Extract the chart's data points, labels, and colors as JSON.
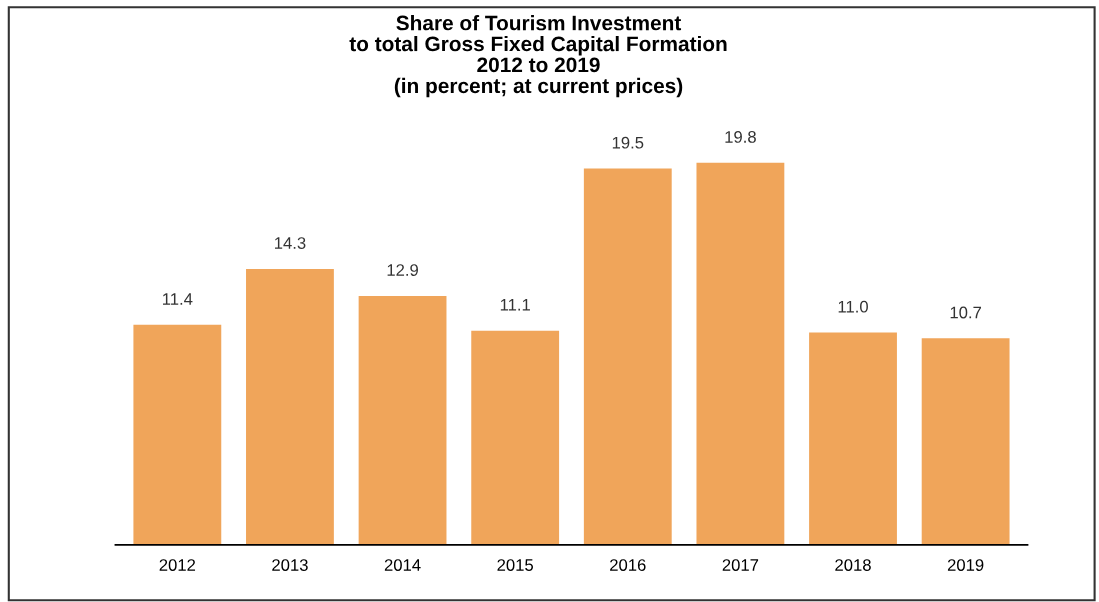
{
  "chart_data": {
    "type": "bar",
    "title": "Share of Tourism Investment\nto total Gross Fixed Capital Formation\n2012 to 2019\n(in percent; at current prices)",
    "categories": [
      "2012",
      "2013",
      "2014",
      "2015",
      "2016",
      "2017",
      "2018",
      "2019"
    ],
    "values": [
      11.4,
      14.3,
      12.9,
      11.1,
      19.5,
      19.8,
      11.0,
      10.7
    ],
    "value_labels": [
      "11.4",
      "14.3",
      "12.9",
      "11.1",
      "19.5",
      "19.8",
      "11.0",
      "10.7"
    ],
    "color": "#f0a55a",
    "grid": false,
    "legend": false
  }
}
